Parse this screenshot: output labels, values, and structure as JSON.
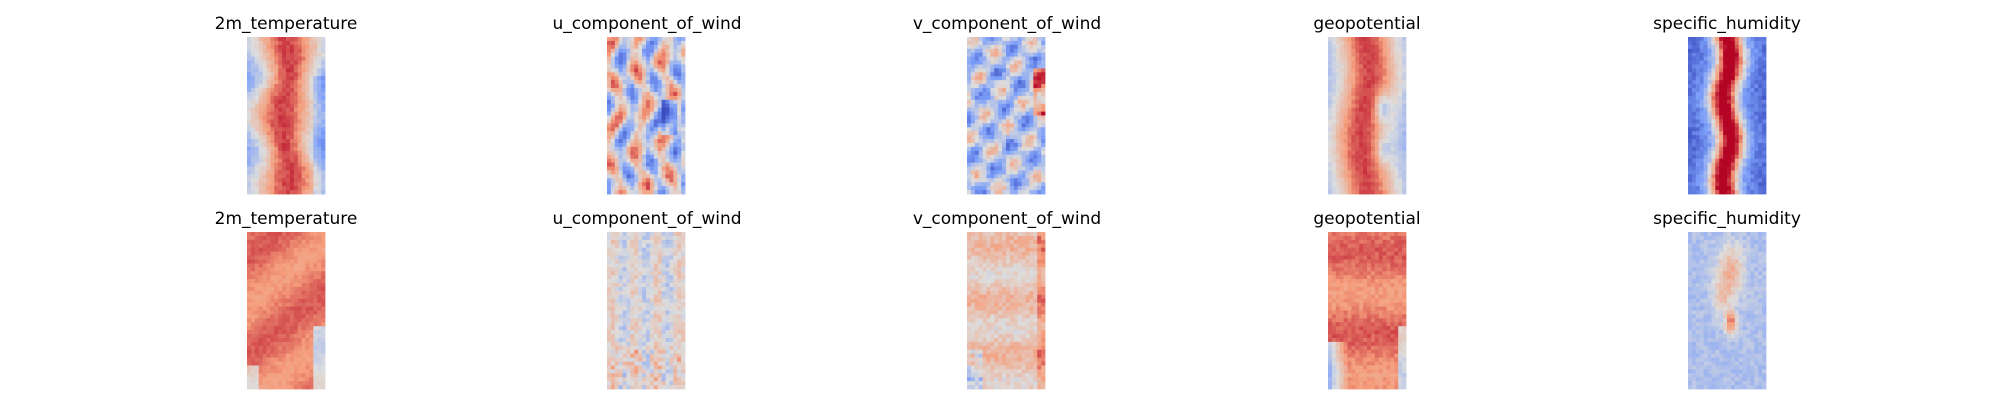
{
  "chart_data": {
    "type": "heatmap",
    "colormap": "coolwarm",
    "axes_visible": false,
    "grid": false,
    "legend": "none",
    "rows": [
      {
        "panels": [
          {
            "title": "2m_temperature",
            "pattern": "warm-band"
          },
          {
            "title": "u_component_of_wind",
            "pattern": "wind-stripes"
          },
          {
            "title": "v_component_of_wind",
            "pattern": "wind-eddies"
          },
          {
            "title": "geopotential",
            "pattern": "warm-band-blobs"
          },
          {
            "title": "specific_humidity",
            "pattern": "humid-core"
          }
        ]
      },
      {
        "panels": [
          {
            "title": "2m_temperature",
            "pattern": "warm-fill"
          },
          {
            "title": "u_component_of_wind",
            "pattern": "noisy-light"
          },
          {
            "title": "v_component_of_wind",
            "pattern": "noisy-warm"
          },
          {
            "title": "geopotential",
            "pattern": "warm-fill-cool-edge"
          },
          {
            "title": "specific_humidity",
            "pattern": "cool-spots"
          }
        ]
      }
    ]
  }
}
